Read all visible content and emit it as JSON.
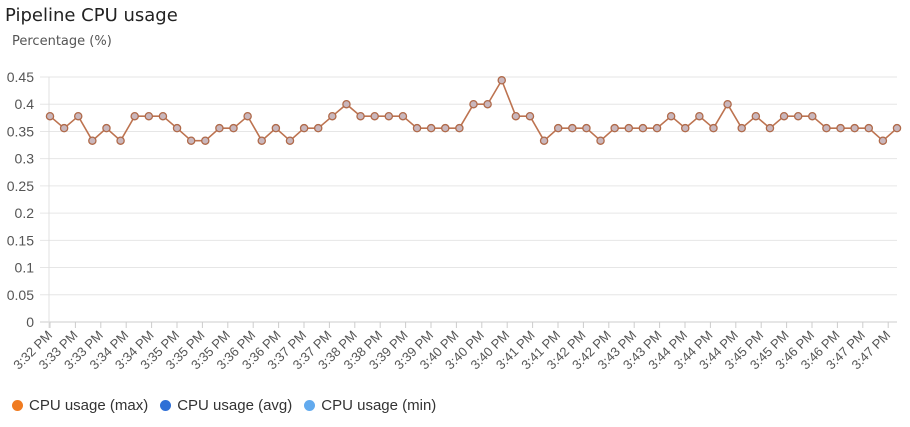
{
  "title": "Pipeline CPU usage",
  "subtitle": "Percentage (%)",
  "chart_data": {
    "type": "line",
    "title": "Pipeline CPU usage",
    "ylabel": "Percentage (%)",
    "xlabel": "",
    "ylim": [
      0,
      0.45
    ],
    "yticks": [
      "0",
      "0.05",
      "0.1",
      "0.15",
      "0.2",
      "0.25",
      "0.3",
      "0.35",
      "0.4",
      "0.45"
    ],
    "xtick_labels": [
      "3:32 PM",
      "3:33 PM",
      "3:33 PM",
      "3:34 PM",
      "3:34 PM",
      "3:35 PM",
      "3:35 PM",
      "3:35 PM",
      "3:36 PM",
      "3:36 PM",
      "3:37 PM",
      "3:37 PM",
      "3:38 PM",
      "3:38 PM",
      "3:39 PM",
      "3:39 PM",
      "3:40 PM",
      "3:40 PM",
      "3:40 PM",
      "3:41 PM",
      "3:41 PM",
      "3:42 PM",
      "3:42 PM",
      "3:43 PM",
      "3:43 PM",
      "3:44 PM",
      "3:44 PM",
      "3:44 PM",
      "3:45 PM",
      "3:45 PM",
      "3:46 PM",
      "3:46 PM",
      "3:47 PM",
      "3:47 PM"
    ],
    "grid": true,
    "legend_position": "bottom-left",
    "series": [
      {
        "name": "CPU usage (max)",
        "color": "#f07b20",
        "values": [
          0.378,
          0.356,
          0.378,
          0.333,
          0.356,
          0.333,
          0.378,
          0.378,
          0.378,
          0.356,
          0.333,
          0.333,
          0.356,
          0.356,
          0.378,
          0.333,
          0.356,
          0.333,
          0.356,
          0.356,
          0.378,
          0.4,
          0.378,
          0.378,
          0.378,
          0.378,
          0.356,
          0.356,
          0.356,
          0.356,
          0.4,
          0.4,
          0.444,
          0.378,
          0.378,
          0.333,
          0.356,
          0.356,
          0.356,
          0.333,
          0.356,
          0.356,
          0.356,
          0.356,
          0.378,
          0.356,
          0.378,
          0.356,
          0.4,
          0.356,
          0.378,
          0.356,
          0.378,
          0.378,
          0.378,
          0.356,
          0.356,
          0.356,
          0.356,
          0.333,
          0.356
        ]
      },
      {
        "name": "CPU usage (avg)",
        "color": "#2e6fd6"
      },
      {
        "name": "CPU usage (min)",
        "color": "#62aaee"
      }
    ]
  }
}
